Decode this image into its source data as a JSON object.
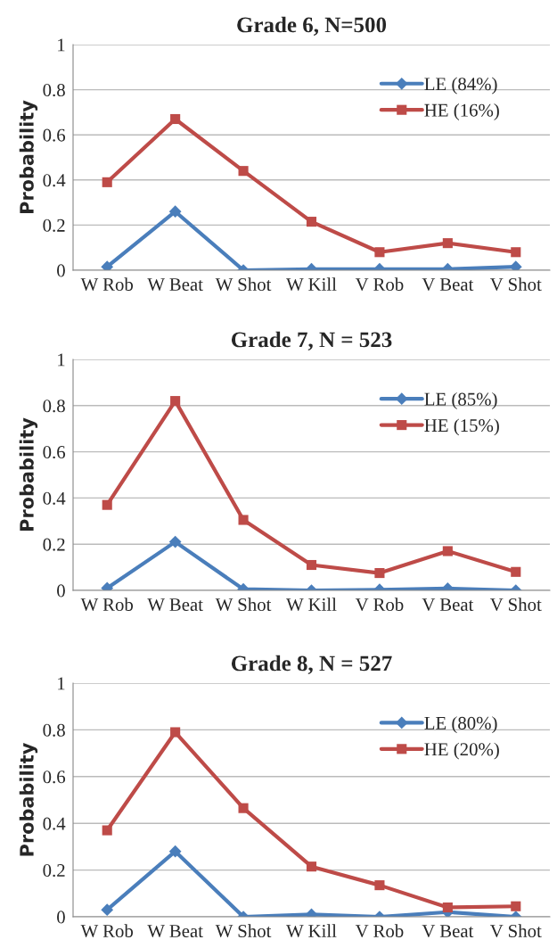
{
  "chart_data": [
    {
      "type": "line",
      "title": "Grade 6, N=500",
      "ylabel": "Probability",
      "categories": [
        "W Rob",
        "W Beat",
        "W Shot",
        "W Kill",
        "V Rob",
        "V Beat",
        "V Shot"
      ],
      "ylim": [
        0,
        1
      ],
      "yticks": [
        0,
        0.2,
        0.4,
        0.6,
        0.8,
        1
      ],
      "grid": "y",
      "legend": "top right",
      "series": [
        {
          "name": "LE (84%)",
          "color": "#4a7ebb",
          "marker": "diamond",
          "values": [
            0.015,
            0.26,
            0.0,
            0.005,
            0.005,
            0.005,
            0.015
          ]
        },
        {
          "name": "HE (16%)",
          "color": "#be4b48",
          "marker": "square",
          "values": [
            0.39,
            0.67,
            0.44,
            0.215,
            0.08,
            0.12,
            0.08
          ]
        }
      ]
    },
    {
      "type": "line",
      "title": "Grade 7, N = 523",
      "ylabel": "Probability",
      "categories": [
        "W Rob",
        "W Beat",
        "W Shot",
        "W Kill",
        "V Rob",
        "V Beat",
        "V Shot"
      ],
      "ylim": [
        0,
        1
      ],
      "yticks": [
        0,
        0.2,
        0.4,
        0.6,
        0.8,
        1
      ],
      "grid": "y",
      "legend": "top right",
      "series": [
        {
          "name": "LE (85%)",
          "color": "#4a7ebb",
          "marker": "diamond",
          "values": [
            0.01,
            0.21,
            0.005,
            0.0,
            0.003,
            0.008,
            0.0
          ]
        },
        {
          "name": "HE (15%)",
          "color": "#be4b48",
          "marker": "square",
          "values": [
            0.37,
            0.82,
            0.305,
            0.11,
            0.075,
            0.17,
            0.08
          ]
        }
      ]
    },
    {
      "type": "line",
      "title": "Grade 8, N = 527",
      "ylabel": "Probability",
      "categories": [
        "W Rob",
        "W Beat",
        "W Shot",
        "W Kill",
        "V Rob",
        "V Beat",
        "V Shot"
      ],
      "ylim": [
        0,
        1
      ],
      "yticks": [
        0,
        0.2,
        0.4,
        0.6,
        0.8,
        1
      ],
      "grid": "y",
      "legend": "top right",
      "series": [
        {
          "name": "LE (80%)",
          "color": "#4a7ebb",
          "marker": "diamond",
          "values": [
            0.03,
            0.28,
            0.0,
            0.01,
            0.0,
            0.02,
            0.0
          ]
        },
        {
          "name": "HE (20%)",
          "color": "#be4b48",
          "marker": "square",
          "values": [
            0.37,
            0.79,
            0.465,
            0.215,
            0.135,
            0.04,
            0.045
          ]
        }
      ]
    }
  ]
}
